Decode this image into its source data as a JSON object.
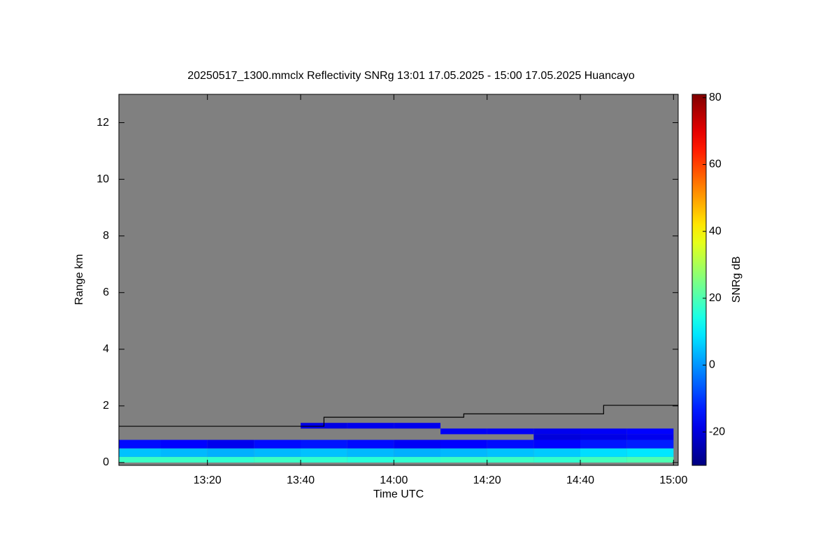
{
  "chart_data": {
    "type": "heatmap",
    "title": "20250517_1300.mmclx Reflectivity SNRg   13:01 17.05.2025 - 15:00 17.05.2025 Huancayo",
    "xlabel": "Time UTC",
    "ylabel": "Range km",
    "colorbar_label": "SNRg dB",
    "xlim": [
      781,
      901
    ],
    "ylim": [
      -0.1,
      13
    ],
    "xticks": [
      {
        "value": 800,
        "label": "13:20"
      },
      {
        "value": 820,
        "label": "13:40"
      },
      {
        "value": 840,
        "label": "14:00"
      },
      {
        "value": 860,
        "label": "14:20"
      },
      {
        "value": 880,
        "label": "14:40"
      },
      {
        "value": 900,
        "label": "15:00"
      }
    ],
    "yticks": [
      0,
      2,
      4,
      6,
      8,
      10,
      12
    ],
    "clim": [
      -30,
      81
    ],
    "cticks": [
      -20,
      0,
      20,
      40,
      60,
      80
    ],
    "colormap": "jet",
    "background": "#808080",
    "x_bins": [
      781,
      790,
      800,
      810,
      820,
      830,
      840,
      850,
      860,
      870,
      880,
      890,
      900
    ],
    "y_bins": [
      0,
      0.2,
      0.5,
      0.8,
      1.0,
      1.2,
      1.4
    ],
    "z": [
      [
        18,
        18,
        17,
        18,
        17,
        16,
        17,
        18,
        18,
        17,
        19,
        20
      ],
      [
        5,
        4,
        3,
        4,
        5,
        4,
        3,
        4,
        5,
        6,
        8,
        9
      ],
      [
        -15,
        -16,
        -18,
        -15,
        -14,
        -15,
        -17,
        -16,
        -15,
        -16,
        -14,
        -13
      ],
      [
        null,
        null,
        null,
        null,
        null,
        null,
        null,
        null,
        null,
        -20,
        -19,
        -18
      ],
      [
        null,
        null,
        null,
        null,
        null,
        null,
        null,
        -17,
        -17,
        -18,
        -17,
        -16
      ],
      [
        null,
        null,
        null,
        null,
        -19,
        -18,
        -18,
        null,
        null,
        null,
        null,
        null
      ]
    ],
    "line": {
      "color": "#000000",
      "x": [
        781,
        825,
        825,
        855,
        855,
        885,
        885,
        901
      ],
      "values": [
        1.28,
        1.28,
        1.6,
        1.6,
        1.72,
        1.72,
        2.02,
        2.02
      ]
    }
  }
}
